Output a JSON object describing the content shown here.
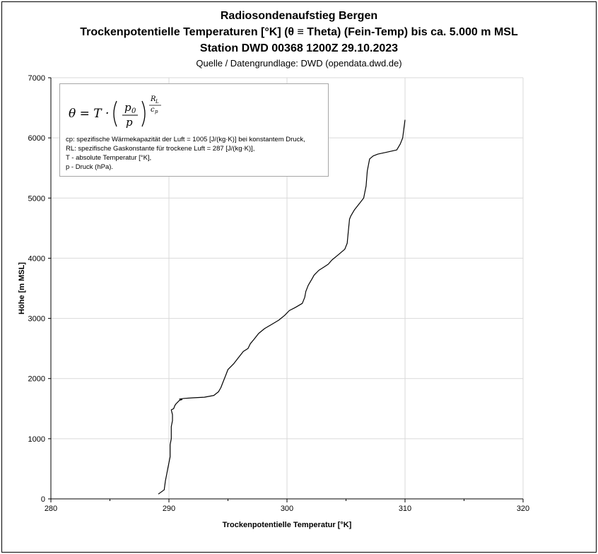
{
  "chart_data": {
    "type": "line",
    "title": "Radiosondenaufstieg Bergen",
    "subtitle_line1": "Trockenpotentielle Temperaturen [°K] (θ ≡ Theta) (Fein-Temp) bis ca. 5.000 m MSL",
    "subtitle_line2": "Station DWD 00368 1200Z 29.10.2023",
    "source": "Quelle / Datengrundlage: DWD (opendata.dwd.de)",
    "xlabel": "Trockenpotentielle Temperatur [°K]",
    "ylabel": "Höhe [m MSL]",
    "xlim": [
      280,
      320
    ],
    "ylim": [
      0,
      7000
    ],
    "x_ticks": [
      "280",
      "290",
      "300",
      "310",
      "320"
    ],
    "y_ticks": [
      "0",
      "1000",
      "2000",
      "3000",
      "4000",
      "5000",
      "6000",
      "7000"
    ],
    "grid": true,
    "line_color": "#000000",
    "series": [
      {
        "x": [
          289.1,
          289.6,
          289.7,
          289.8,
          289.9,
          290.0,
          290.1,
          290.1,
          290.1,
          290.2,
          290.2,
          290.2,
          290.3,
          290.3,
          290.2,
          290.4,
          290.5,
          290.6,
          290.7,
          290.8,
          290.9,
          291.1,
          290.9,
          291.3,
          292.0,
          293.0,
          293.8,
          294.2,
          294.4,
          294.6,
          294.8,
          295.0,
          295.5,
          295.9,
          296.3,
          296.7,
          296.9,
          297.2,
          297.6,
          298.1,
          298.7,
          299.3,
          299.8,
          300.2,
          300.7,
          301.3,
          301.5,
          301.6,
          301.8,
          302.1,
          302.3,
          302.7,
          303.1,
          303.5,
          303.8,
          304.3,
          304.9,
          305.1,
          305.2,
          305.3,
          305.4,
          305.7,
          306.1,
          306.5,
          306.7,
          306.8,
          307.0,
          307.3,
          307.7,
          308.4,
          309.3,
          309.6,
          309.8,
          309.9,
          310.0
        ],
        "y": [
          80,
          150,
          300,
          400,
          500,
          600,
          700,
          800,
          900,
          1000,
          1100,
          1200,
          1300,
          1400,
          1480,
          1500,
          1550,
          1580,
          1600,
          1620,
          1640,
          1650,
          1660,
          1670,
          1680,
          1690,
          1720,
          1780,
          1850,
          1950,
          2050,
          2150,
          2250,
          2350,
          2450,
          2500,
          2580,
          2650,
          2750,
          2830,
          2900,
          2970,
          3050,
          3130,
          3180,
          3250,
          3350,
          3450,
          3550,
          3650,
          3720,
          3800,
          3850,
          3900,
          3970,
          4050,
          4150,
          4250,
          4450,
          4650,
          4700,
          4800,
          4900,
          5000,
          5200,
          5450,
          5650,
          5700,
          5730,
          5760,
          5800,
          5900,
          6000,
          6150,
          6300
        ]
      }
    ]
  },
  "formula": {
    "lines": [
      "cp: spezifische Wärmekapazität der Luft = 1005 [J/(kg·K)] bei konstantem Druck,",
      "RL: spezifische Gaskonstante für trockene Luft = 287 [J/(kg·K)],",
      "T - absolute Temperatur [°K],",
      "p - Druck (hPa)."
    ]
  }
}
